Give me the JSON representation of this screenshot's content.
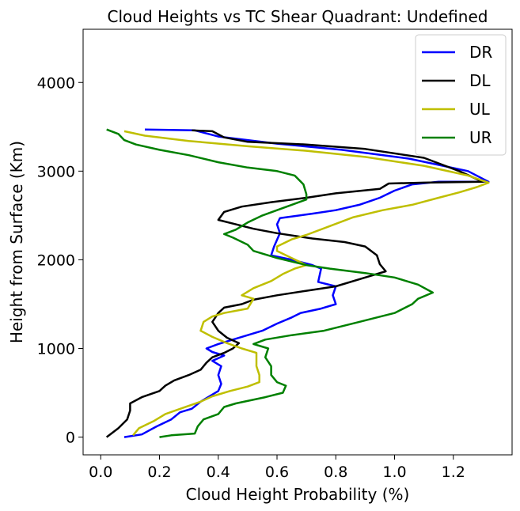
{
  "chart_data": {
    "type": "line",
    "title": "Cloud Heights vs TC Shear Quadrant: Undefined",
    "xlabel": "Cloud Height Probability (%)",
    "ylabel": "Height from Surface (Km)",
    "xlim": [
      -0.06,
      1.4
    ],
    "ylim": [
      -200,
      4600
    ],
    "xticks": [
      "0.0",
      "0.2",
      "0.4",
      "0.6",
      "0.8",
      "1.0",
      "1.2"
    ],
    "yticks": [
      "0",
      "1000",
      "2000",
      "3000",
      "4000"
    ],
    "grid": false,
    "legend_position": "top-right",
    "series": [
      {
        "name": "DR",
        "color": "#0000ff",
        "points": [
          [
            0.08,
            0
          ],
          [
            0.14,
            30
          ],
          [
            0.19,
            120
          ],
          [
            0.24,
            200
          ],
          [
            0.27,
            280
          ],
          [
            0.31,
            320
          ],
          [
            0.34,
            400
          ],
          [
            0.38,
            480
          ],
          [
            0.4,
            520
          ],
          [
            0.41,
            600
          ],
          [
            0.4,
            700
          ],
          [
            0.41,
            800
          ],
          [
            0.38,
            860
          ],
          [
            0.42,
            920
          ],
          [
            0.38,
            960
          ],
          [
            0.36,
            1000
          ],
          [
            0.4,
            1050
          ],
          [
            0.45,
            1100
          ],
          [
            0.5,
            1150
          ],
          [
            0.55,
            1200
          ],
          [
            0.6,
            1280
          ],
          [
            0.65,
            1350
          ],
          [
            0.68,
            1400
          ],
          [
            0.75,
            1450
          ],
          [
            0.8,
            1500
          ],
          [
            0.79,
            1600
          ],
          [
            0.8,
            1700
          ],
          [
            0.74,
            1750
          ],
          [
            0.75,
            1900
          ],
          [
            0.72,
            1940
          ],
          [
            0.65,
            2000
          ],
          [
            0.58,
            2050
          ],
          [
            0.59,
            2150
          ],
          [
            0.61,
            2300
          ],
          [
            0.6,
            2400
          ],
          [
            0.61,
            2470
          ],
          [
            0.72,
            2520
          ],
          [
            0.8,
            2560
          ],
          [
            0.88,
            2620
          ],
          [
            0.95,
            2700
          ],
          [
            1.0,
            2780
          ],
          [
            1.06,
            2850
          ],
          [
            1.15,
            2880
          ],
          [
            1.32,
            2880
          ],
          [
            1.25,
            3000
          ],
          [
            1.05,
            3140
          ],
          [
            0.82,
            3240
          ],
          [
            0.6,
            3310
          ],
          [
            0.4,
            3390
          ],
          [
            0.32,
            3460
          ],
          [
            0.15,
            3470
          ]
        ]
      },
      {
        "name": "DL",
        "color": "#000000",
        "points": [
          [
            0.02,
            0
          ],
          [
            0.04,
            50
          ],
          [
            0.06,
            100
          ],
          [
            0.09,
            200
          ],
          [
            0.1,
            300
          ],
          [
            0.1,
            380
          ],
          [
            0.14,
            450
          ],
          [
            0.2,
            520
          ],
          [
            0.22,
            580
          ],
          [
            0.25,
            640
          ],
          [
            0.3,
            700
          ],
          [
            0.34,
            760
          ],
          [
            0.36,
            840
          ],
          [
            0.38,
            900
          ],
          [
            0.42,
            950
          ],
          [
            0.45,
            1000
          ],
          [
            0.47,
            1060
          ],
          [
            0.43,
            1120
          ],
          [
            0.4,
            1200
          ],
          [
            0.38,
            1300
          ],
          [
            0.4,
            1400
          ],
          [
            0.42,
            1460
          ],
          [
            0.48,
            1500
          ],
          [
            0.52,
            1550
          ],
          [
            0.6,
            1600
          ],
          [
            0.7,
            1650
          ],
          [
            0.8,
            1700
          ],
          [
            0.9,
            1800
          ],
          [
            0.97,
            1870
          ],
          [
            0.95,
            1950
          ],
          [
            0.94,
            2050
          ],
          [
            0.9,
            2150
          ],
          [
            0.83,
            2200
          ],
          [
            0.72,
            2240
          ],
          [
            0.6,
            2300
          ],
          [
            0.52,
            2350
          ],
          [
            0.46,
            2400
          ],
          [
            0.4,
            2450
          ],
          [
            0.42,
            2540
          ],
          [
            0.48,
            2600
          ],
          [
            0.58,
            2650
          ],
          [
            0.7,
            2700
          ],
          [
            0.8,
            2750
          ],
          [
            0.95,
            2800
          ],
          [
            0.98,
            2860
          ],
          [
            1.1,
            2870
          ],
          [
            1.3,
            2880
          ],
          [
            1.22,
            3000
          ],
          [
            1.1,
            3150
          ],
          [
            0.9,
            3250
          ],
          [
            0.7,
            3300
          ],
          [
            0.5,
            3330
          ],
          [
            0.42,
            3380
          ],
          [
            0.38,
            3450
          ],
          [
            0.31,
            3460
          ]
        ]
      },
      {
        "name": "UL",
        "color": "#bfbf00",
        "points": [
          [
            0.11,
            20
          ],
          [
            0.13,
            100
          ],
          [
            0.18,
            180
          ],
          [
            0.22,
            260
          ],
          [
            0.28,
            330
          ],
          [
            0.34,
            400
          ],
          [
            0.38,
            460
          ],
          [
            0.44,
            520
          ],
          [
            0.5,
            570
          ],
          [
            0.54,
            620
          ],
          [
            0.54,
            700
          ],
          [
            0.53,
            800
          ],
          [
            0.53,
            900
          ],
          [
            0.53,
            950
          ],
          [
            0.48,
            1000
          ],
          [
            0.43,
            1060
          ],
          [
            0.38,
            1130
          ],
          [
            0.34,
            1200
          ],
          [
            0.35,
            1300
          ],
          [
            0.38,
            1360
          ],
          [
            0.42,
            1400
          ],
          [
            0.5,
            1450
          ],
          [
            0.52,
            1560
          ],
          [
            0.48,
            1600
          ],
          [
            0.52,
            1680
          ],
          [
            0.58,
            1760
          ],
          [
            0.62,
            1840
          ],
          [
            0.66,
            1900
          ],
          [
            0.7,
            1940
          ],
          [
            0.65,
            2020
          ],
          [
            0.6,
            2100
          ],
          [
            0.6,
            2150
          ],
          [
            0.65,
            2230
          ],
          [
            0.7,
            2280
          ],
          [
            0.78,
            2380
          ],
          [
            0.86,
            2480
          ],
          [
            0.96,
            2560
          ],
          [
            1.06,
            2620
          ],
          [
            1.15,
            2700
          ],
          [
            1.22,
            2760
          ],
          [
            1.28,
            2820
          ],
          [
            1.32,
            2870
          ],
          [
            1.25,
            2950
          ],
          [
            1.1,
            3060
          ],
          [
            0.9,
            3160
          ],
          [
            0.7,
            3230
          ],
          [
            0.5,
            3280
          ],
          [
            0.3,
            3340
          ],
          [
            0.15,
            3400
          ],
          [
            0.08,
            3450
          ]
        ]
      },
      {
        "name": "UR",
        "color": "#008000",
        "points": [
          [
            0.2,
            0
          ],
          [
            0.24,
            20
          ],
          [
            0.32,
            40
          ],
          [
            0.33,
            120
          ],
          [
            0.35,
            200
          ],
          [
            0.4,
            260
          ],
          [
            0.42,
            340
          ],
          [
            0.46,
            380
          ],
          [
            0.56,
            450
          ],
          [
            0.62,
            500
          ],
          [
            0.63,
            580
          ],
          [
            0.6,
            620
          ],
          [
            0.58,
            700
          ],
          [
            0.58,
            800
          ],
          [
            0.56,
            900
          ],
          [
            0.57,
            1000
          ],
          [
            0.52,
            1050
          ],
          [
            0.56,
            1100
          ],
          [
            0.65,
            1150
          ],
          [
            0.76,
            1200
          ],
          [
            0.88,
            1300
          ],
          [
            1.0,
            1400
          ],
          [
            1.06,
            1500
          ],
          [
            1.08,
            1560
          ],
          [
            1.13,
            1630
          ],
          [
            1.08,
            1720
          ],
          [
            1.0,
            1800
          ],
          [
            0.9,
            1850
          ],
          [
            0.78,
            1900
          ],
          [
            0.7,
            1940
          ],
          [
            0.6,
            2020
          ],
          [
            0.52,
            2100
          ],
          [
            0.5,
            2170
          ],
          [
            0.45,
            2250
          ],
          [
            0.42,
            2290
          ],
          [
            0.46,
            2340
          ],
          [
            0.5,
            2420
          ],
          [
            0.55,
            2500
          ],
          [
            0.6,
            2560
          ],
          [
            0.65,
            2620
          ],
          [
            0.7,
            2680
          ],
          [
            0.7,
            2740
          ],
          [
            0.69,
            2850
          ],
          [
            0.66,
            2950
          ],
          [
            0.6,
            3000
          ],
          [
            0.5,
            3040
          ],
          [
            0.4,
            3100
          ],
          [
            0.3,
            3180
          ],
          [
            0.2,
            3240
          ],
          [
            0.12,
            3300
          ],
          [
            0.08,
            3350
          ],
          [
            0.06,
            3420
          ],
          [
            0.02,
            3470
          ]
        ]
      }
    ]
  }
}
